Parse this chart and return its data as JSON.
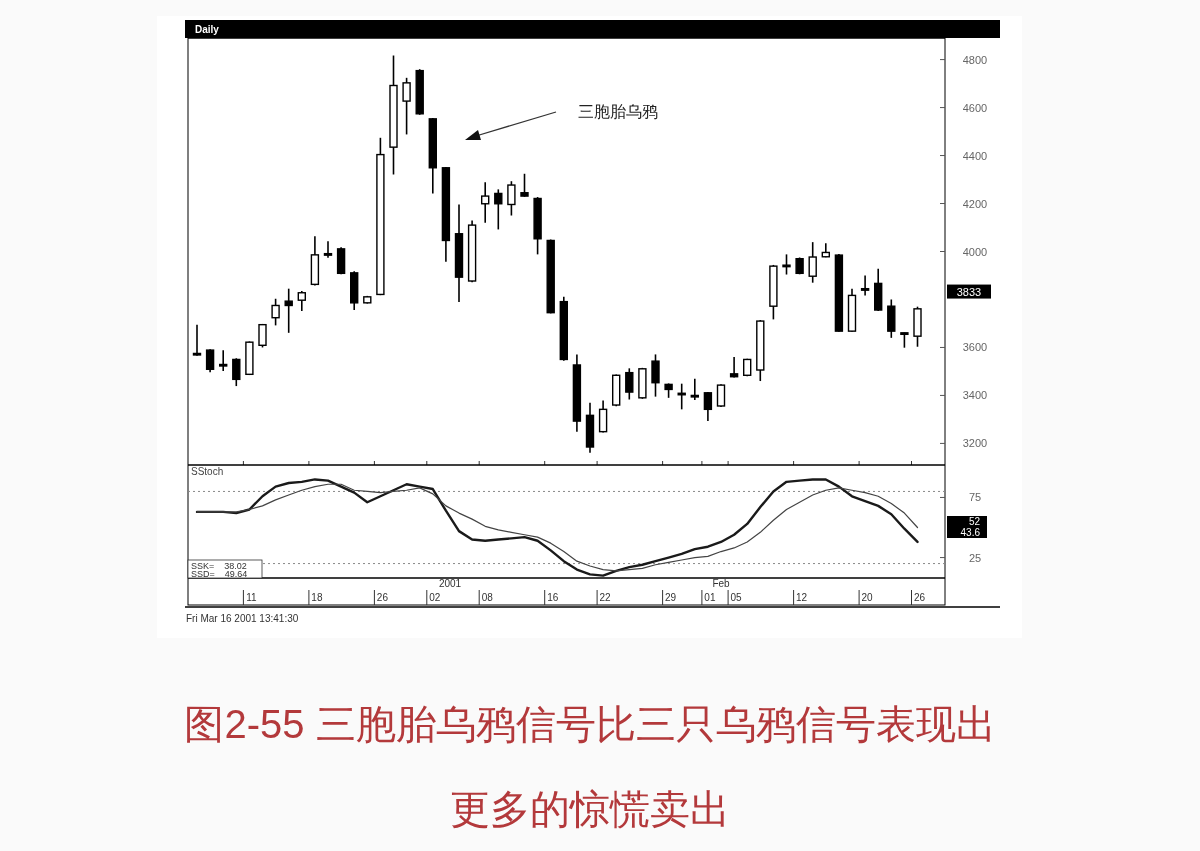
{
  "chart_data": [
    {
      "type": "candlestick",
      "title": "Daily",
      "tick_labels": "y",
      "categories": [
        null,
        null,
        null,
        null,
        "11",
        null,
        null,
        null,
        null,
        "18",
        null,
        null,
        null,
        null,
        "26",
        null,
        null,
        null,
        "02",
        null,
        null,
        null,
        "08",
        null,
        null,
        null,
        null,
        "16",
        null,
        null,
        null,
        "22",
        null,
        null,
        null,
        null,
        "29",
        null,
        null,
        "01",
        null,
        "05",
        null,
        null,
        null,
        null,
        "12",
        null,
        null,
        null,
        null,
        "20",
        null,
        null,
        null,
        "26"
      ],
      "ohlc": [
        [
          3575,
          3695,
          3565,
          3570
        ],
        [
          3589,
          3592,
          3497,
          3509
        ],
        [
          3529,
          3588,
          3502,
          3525
        ],
        [
          3550,
          3555,
          3439,
          3467
        ],
        [
          3488,
          3625,
          3485,
          3622
        ],
        [
          3609,
          3698,
          3600,
          3695
        ],
        [
          3724,
          3803,
          3692,
          3775
        ],
        [
          3793,
          3845,
          3661,
          3775
        ],
        [
          3797,
          3835,
          3752,
          3828
        ],
        [
          3863,
          4064,
          3858,
          3986
        ],
        [
          3991,
          4043,
          3974,
          3987
        ],
        [
          4011,
          4018,
          3905,
          3909
        ],
        [
          3911,
          3918,
          3756,
          3786
        ],
        [
          3786,
          3815,
          3783,
          3811
        ],
        [
          3821,
          4474,
          3818,
          4404
        ],
        [
          4435,
          4817,
          4321,
          4692
        ],
        [
          4627,
          4724,
          4488,
          4703
        ],
        [
          4754,
          4760,
          4570,
          4574
        ],
        [
          4553,
          4556,
          4242,
          4349
        ],
        [
          4349,
          4352,
          3957,
          4046
        ],
        [
          4074,
          4196,
          3789,
          3893
        ],
        [
          3877,
          4129,
          3872,
          4110
        ],
        [
          4199,
          4289,
          4120,
          4231
        ],
        [
          4242,
          4259,
          4092,
          4199
        ],
        [
          4196,
          4293,
          4150,
          4277
        ],
        [
          4245,
          4324,
          4228,
          4231
        ],
        [
          4221,
          4227,
          3988,
          4053
        ],
        [
          4046,
          4050,
          3742,
          3745
        ],
        [
          3791,
          3811,
          3545,
          3550
        ],
        [
          3527,
          3571,
          3249,
          3293
        ],
        [
          3317,
          3370,
          3161,
          3185
        ],
        [
          3249,
          3379,
          3245,
          3342
        ],
        [
          3360,
          3487,
          3355,
          3484
        ],
        [
          3495,
          3513,
          3383,
          3414
        ],
        [
          3390,
          3515,
          3386,
          3511
        ],
        [
          3543,
          3571,
          3395,
          3453
        ],
        [
          3446,
          3450,
          3390,
          3425
        ],
        [
          3409,
          3449,
          3342,
          3407
        ],
        [
          3400,
          3470,
          3381,
          3398
        ],
        [
          3411,
          3414,
          3293,
          3342
        ],
        [
          3356,
          3447,
          3352,
          3443
        ],
        [
          3490,
          3560,
          3475,
          3478
        ],
        [
          3484,
          3553,
          3480,
          3550
        ],
        [
          3506,
          3714,
          3460,
          3710
        ],
        [
          3772,
          3944,
          3717,
          3939
        ],
        [
          3943,
          3988,
          3904,
          3941
        ],
        [
          3970,
          3975,
          3905,
          3909
        ],
        [
          3897,
          4039,
          3870,
          3977
        ],
        [
          3978,
          4034,
          3976,
          3996
        ],
        [
          3985,
          3990,
          3665,
          3668
        ],
        [
          3668,
          3845,
          3665,
          3817
        ],
        [
          3845,
          3900,
          3817,
          3842
        ],
        [
          3867,
          3928,
          3752,
          3756
        ],
        [
          3772,
          3800,
          3640,
          3668
        ],
        [
          3661,
          3662,
          3599,
          3659
        ],
        [
          3647,
          3770,
          3603,
          3761
        ]
      ],
      "ylim": [
        3110,
        4890
      ],
      "yticks": [
        3200,
        3400,
        3600,
        4000,
        4200,
        4400,
        4600,
        4800
      ],
      "annotations": [
        "三胞胎乌鸦",
        "3833",
        "Fri Mar 16 2001 13:41:30",
        "图2-55 三胞胎乌鸦信号比三只乌鸦信号表现出",
        "更多的惊慌卖出"
      ]
    },
    {
      "type": "line",
      "title": "SStoch",
      "line_style": "solid",
      "categories": [
        null,
        null,
        null,
        null,
        "11",
        null,
        null,
        null,
        null,
        "18",
        null,
        null,
        null,
        null,
        "26",
        null,
        null,
        null,
        "02",
        null,
        null,
        null,
        "08",
        null,
        null,
        null,
        null,
        "16",
        null,
        null,
        null,
        "22",
        null,
        null,
        null,
        null,
        "29",
        null,
        null,
        "01",
        null,
        "05",
        null,
        null,
        null,
        null,
        "12",
        null,
        null,
        null,
        null,
        "20",
        null,
        null,
        null,
        "26"
      ],
      "series": [
        {
          "color": "#1a1a1a",
          "values": [
            63,
            63,
            63,
            62,
            65,
            76,
            84,
            87,
            88,
            90,
            89,
            84,
            79,
            71,
            76,
            81,
            86,
            84,
            82,
            64,
            47,
            40,
            39,
            40,
            41,
            42,
            39,
            31,
            22,
            15,
            11,
            10,
            14,
            17,
            19,
            22,
            25,
            28,
            32,
            34,
            38,
            44,
            53,
            67,
            80,
            88,
            89,
            90,
            90,
            84,
            76,
            72,
            68,
            61,
            49,
            38
          ]
        },
        {
          "color": "#444444",
          "values": [
            63,
            63,
            63,
            63,
            65,
            68,
            73,
            77,
            81,
            84,
            86,
            86,
            81,
            80,
            79,
            80,
            81,
            83,
            78,
            68,
            62,
            57,
            51,
            48,
            46,
            44,
            42,
            37,
            30,
            22,
            18,
            15,
            14,
            15,
            16,
            19,
            21,
            23,
            25,
            26,
            30,
            33,
            38,
            46,
            56,
            65,
            71,
            77,
            81,
            83,
            81,
            79,
            76,
            70,
            62,
            50
          ]
        }
      ],
      "ylim": [
        8,
        102
      ],
      "yticks": [
        25,
        75
      ],
      "ref_lines": [
        {
          "axis": "y",
          "value": 80,
          "line_style": "dotted"
        },
        {
          "axis": "y",
          "value": 20,
          "line_style": "dotted"
        }
      ],
      "annotations": [
        "SSK=    38.02",
        "SSD=    49.64",
        "52",
        "43.6",
        "2001",
        "Feb"
      ]
    }
  ]
}
